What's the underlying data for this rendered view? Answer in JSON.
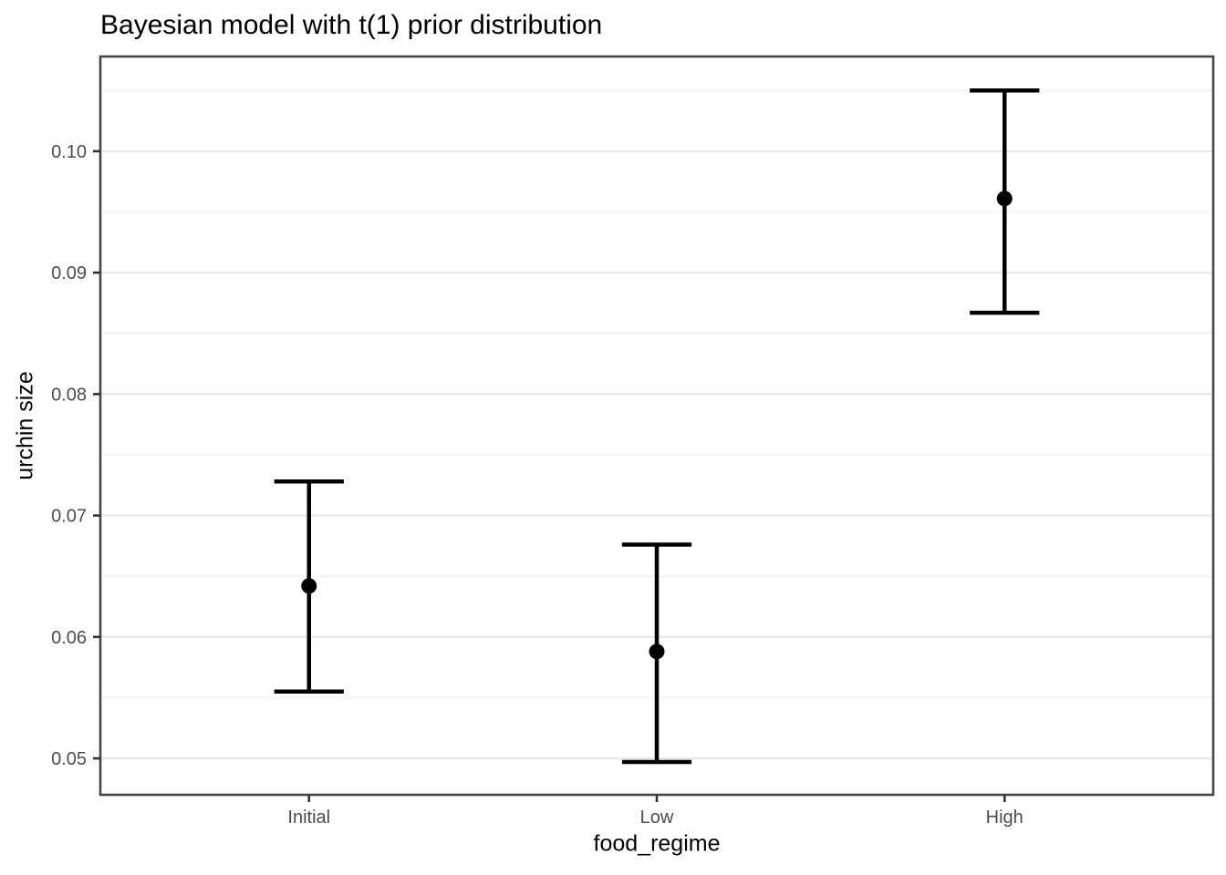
{
  "title": "Bayesian model with t(1) prior distribution",
  "chart_data": {
    "type": "scatter",
    "subtype": "point-with-errorbar",
    "title": "Bayesian model with t(1) prior distribution",
    "xlabel": "food_regime",
    "ylabel": "urchin size",
    "categories": [
      "Initial",
      "Low",
      "High"
    ],
    "points": [
      {
        "category": "Initial",
        "mean": 0.0642,
        "lower": 0.0555,
        "upper": 0.0728
      },
      {
        "category": "Low",
        "mean": 0.0588,
        "lower": 0.0497,
        "upper": 0.0676
      },
      {
        "category": "High",
        "mean": 0.0961,
        "lower": 0.0867,
        "upper": 0.105
      }
    ],
    "y_ticks": [
      0.05,
      0.06,
      0.07,
      0.08,
      0.09,
      0.1
    ],
    "y_tick_labels": [
      "0.05",
      "0.06",
      "0.07",
      "0.08",
      "0.09",
      "0.10"
    ],
    "y_minor_ticks": [
      0.055,
      0.065,
      0.075,
      0.085,
      0.095,
      0.105
    ],
    "ylim": [
      0.047,
      0.1078
    ],
    "grid": "major-and-minor",
    "legend_position": "none",
    "errorbar_cap_width_data_units": 0.2
  },
  "colors": {
    "background": "#ffffff",
    "panel_background": "#ffffff",
    "panel_border": "#474747",
    "grid_major": "#e9e9e9",
    "grid_minor": "#f5f5f5",
    "data_series": "#000000",
    "tick_mark": "#333333",
    "tick_label": "#4d4d4d",
    "axis_title": "#000000",
    "title": "#000000"
  }
}
